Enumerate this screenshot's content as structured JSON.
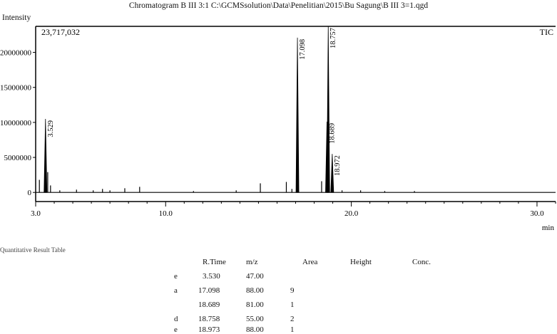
{
  "window": {
    "title": "Chromatogram B III 3:1 C:\\GCMSsolution\\Data\\Penelitian\\2015\\Bu Sagung\\B III 3=1.qgd"
  },
  "chart_data": {
    "type": "line",
    "title": "Chromatogram B III 3:1 C:\\GCMSsolution\\Data\\Penelitian\\2015\\Bu Sagung\\B III 3=1.qgd",
    "ylabel": "Intensity",
    "xlabel": "min",
    "max_intensity_label": "23,717,032",
    "trace_label": "TIC",
    "xlim": [
      3.0,
      31.0
    ],
    "ylim": [
      -1300000,
      23717032
    ],
    "x_ticks": [
      3.0,
      10.0,
      20.0,
      30.0
    ],
    "x_tick_labels": [
      "3.0",
      "10.0",
      "20.0",
      "30.0"
    ],
    "y_ticks": [
      0,
      5000000,
      10000000,
      15000000,
      20000000
    ],
    "y_tick_labels": [
      "0",
      "5000000",
      "10000000",
      "15000000",
      "20000000"
    ],
    "peaks": [
      {
        "rt": 3.529,
        "height": 10500000,
        "label": "3.529"
      },
      {
        "rt": 17.098,
        "height": 22100000,
        "label": "17.098"
      },
      {
        "rt": 18.689,
        "height": 10100000,
        "label": "18.689"
      },
      {
        "rt": 18.757,
        "height": 23700000,
        "label": "18.757"
      },
      {
        "rt": 18.972,
        "height": 5500000,
        "label": "18.972"
      }
    ],
    "minor_peaks": [
      {
        "rt": 3.2,
        "height": 1800000
      },
      {
        "rt": 3.65,
        "height": 2900000
      },
      {
        "rt": 3.8,
        "height": 1000000
      },
      {
        "rt": 4.3,
        "height": 300000
      },
      {
        "rt": 5.2,
        "height": 400000
      },
      {
        "rt": 6.1,
        "height": 300000
      },
      {
        "rt": 6.6,
        "height": 500000
      },
      {
        "rt": 7.0,
        "height": 300000
      },
      {
        "rt": 7.8,
        "height": 600000
      },
      {
        "rt": 8.6,
        "height": 800000
      },
      {
        "rt": 11.5,
        "height": 200000
      },
      {
        "rt": 13.8,
        "height": 300000
      },
      {
        "rt": 15.1,
        "height": 1300000
      },
      {
        "rt": 16.5,
        "height": 1500000
      },
      {
        "rt": 16.8,
        "height": 500000
      },
      {
        "rt": 18.4,
        "height": 1600000
      },
      {
        "rt": 19.5,
        "height": 300000
      },
      {
        "rt": 20.5,
        "height": 300000
      },
      {
        "rt": 21.8,
        "height": 200000
      },
      {
        "rt": 23.4,
        "height": 200000
      }
    ]
  },
  "results_table": {
    "caption": "Quantitative Result Table",
    "columns": [
      "R.Time",
      "m/z",
      "Area",
      "Height",
      "Conc."
    ],
    "rows": [
      {
        "name_fragment": "e",
        "rtime": "3.530",
        "mz": "47.00"
      },
      {
        "name_fragment": "a",
        "rtime": "17.098",
        "mz": "88.00"
      },
      {
        "name_fragment": "",
        "rtime": "18.689",
        "mz": "81.00"
      },
      {
        "name_fragment": "d",
        "rtime": "18.758",
        "mz": "55.00"
      },
      {
        "name_fragment": "e",
        "rtime": "18.973",
        "mz": "88.00"
      }
    ],
    "area_fragments": [
      "",
      "9",
      "1",
      "2",
      "1"
    ]
  }
}
